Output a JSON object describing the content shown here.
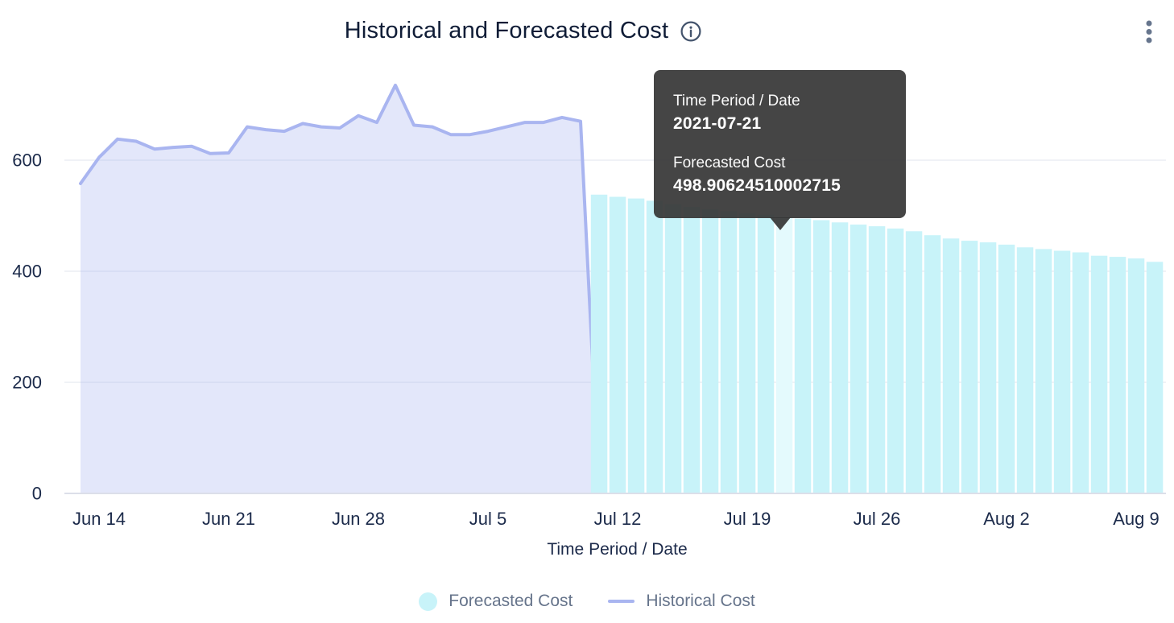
{
  "header": {
    "title": "Historical and Forecasted Cost"
  },
  "tooltip": {
    "x_label": "Time Period / Date",
    "x_value": "2021-07-21",
    "series_label": "Forecasted Cost",
    "series_value": "498.90624510002715"
  },
  "legend": {
    "forecasted_label": "Forecasted Cost",
    "historical_label": "Historical Cost"
  },
  "colors": {
    "bar": "#c8f3f9",
    "bar_highlight": "#e4fafd",
    "hist_line": "#a9b5f0",
    "hist_fill": "rgba(169,181,240,0.32)",
    "grid": "#ebedf3",
    "zero_line": "#dcdfe9",
    "tick_text": "#1b2a4a",
    "icon": "#4c5d75"
  },
  "chart_data": {
    "type": "composed-area-bar",
    "title": "Historical and Forecasted Cost",
    "xlabel": "Time Period / Date",
    "ylabel": "",
    "ylim": [
      0,
      740
    ],
    "yticks": [
      0,
      200,
      400,
      600
    ],
    "x_origin": "2021-06-13",
    "xticks": [
      {
        "label": "Jun 14",
        "date": "2021-06-14"
      },
      {
        "label": "Jun 21",
        "date": "2021-06-21"
      },
      {
        "label": "Jun 28",
        "date": "2021-06-28"
      },
      {
        "label": "Jul 5",
        "date": "2021-07-05"
      },
      {
        "label": "Jul 12",
        "date": "2021-07-12"
      },
      {
        "label": "Jul 19",
        "date": "2021-07-19"
      },
      {
        "label": "Jul 26",
        "date": "2021-07-26"
      },
      {
        "label": "Aug 2",
        "date": "2021-08-02"
      },
      {
        "label": "Aug 9",
        "date": "2021-08-09"
      }
    ],
    "legend_position": "bottom",
    "grid": true,
    "series": [
      {
        "name": "Historical Cost",
        "type": "area",
        "points": [
          {
            "date": "2021-06-13",
            "value": 558
          },
          {
            "date": "2021-06-14",
            "value": 605
          },
          {
            "date": "2021-06-15",
            "value": 638
          },
          {
            "date": "2021-06-16",
            "value": 634
          },
          {
            "date": "2021-06-17",
            "value": 620
          },
          {
            "date": "2021-06-18",
            "value": 623
          },
          {
            "date": "2021-06-19",
            "value": 625
          },
          {
            "date": "2021-06-20",
            "value": 612
          },
          {
            "date": "2021-06-21",
            "value": 613
          },
          {
            "date": "2021-06-22",
            "value": 660
          },
          {
            "date": "2021-06-23",
            "value": 655
          },
          {
            "date": "2021-06-24",
            "value": 652
          },
          {
            "date": "2021-06-25",
            "value": 666
          },
          {
            "date": "2021-06-26",
            "value": 660
          },
          {
            "date": "2021-06-27",
            "value": 658
          },
          {
            "date": "2021-06-28",
            "value": 680
          },
          {
            "date": "2021-06-29",
            "value": 668
          },
          {
            "date": "2021-06-30",
            "value": 735
          },
          {
            "date": "2021-07-01",
            "value": 663
          },
          {
            "date": "2021-07-02",
            "value": 660
          },
          {
            "date": "2021-07-03",
            "value": 646
          },
          {
            "date": "2021-07-04",
            "value": 646
          },
          {
            "date": "2021-07-05",
            "value": 652
          },
          {
            "date": "2021-07-06",
            "value": 660
          },
          {
            "date": "2021-07-07",
            "value": 668
          },
          {
            "date": "2021-07-08",
            "value": 668
          },
          {
            "date": "2021-07-09",
            "value": 677
          },
          {
            "date": "2021-07-10",
            "value": 670
          },
          {
            "date": "2021-07-11",
            "value": 2
          }
        ]
      },
      {
        "name": "Forecasted Cost",
        "type": "bar",
        "highlight_date": "2021-07-21",
        "points": [
          {
            "date": "2021-07-11",
            "value": 538
          },
          {
            "date": "2021-07-12",
            "value": 534
          },
          {
            "date": "2021-07-13",
            "value": 531
          },
          {
            "date": "2021-07-14",
            "value": 527
          },
          {
            "date": "2021-07-15",
            "value": 521
          },
          {
            "date": "2021-07-16",
            "value": 516
          },
          {
            "date": "2021-07-17",
            "value": 512
          },
          {
            "date": "2021-07-18",
            "value": 508
          },
          {
            "date": "2021-07-19",
            "value": 505
          },
          {
            "date": "2021-07-20",
            "value": 502
          },
          {
            "date": "2021-07-21",
            "value": 498.90624510002715
          },
          {
            "date": "2021-07-22",
            "value": 495
          },
          {
            "date": "2021-07-23",
            "value": 492
          },
          {
            "date": "2021-07-24",
            "value": 488
          },
          {
            "date": "2021-07-25",
            "value": 484
          },
          {
            "date": "2021-07-26",
            "value": 481
          },
          {
            "date": "2021-07-27",
            "value": 477
          },
          {
            "date": "2021-07-28",
            "value": 472
          },
          {
            "date": "2021-07-29",
            "value": 465
          },
          {
            "date": "2021-07-30",
            "value": 459
          },
          {
            "date": "2021-07-31",
            "value": 455
          },
          {
            "date": "2021-08-01",
            "value": 452
          },
          {
            "date": "2021-08-02",
            "value": 448
          },
          {
            "date": "2021-08-03",
            "value": 443
          },
          {
            "date": "2021-08-04",
            "value": 440
          },
          {
            "date": "2021-08-05",
            "value": 437
          },
          {
            "date": "2021-08-06",
            "value": 434
          },
          {
            "date": "2021-08-07",
            "value": 428
          },
          {
            "date": "2021-08-08",
            "value": 426
          },
          {
            "date": "2021-08-09",
            "value": 423
          },
          {
            "date": "2021-08-10",
            "value": 417
          }
        ]
      }
    ]
  }
}
